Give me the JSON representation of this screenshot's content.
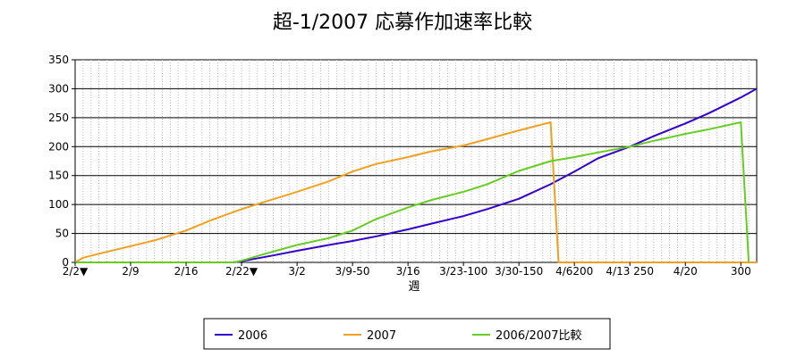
{
  "chart_data": {
    "type": "line",
    "title": "超-1/2007 応募作加速率比較",
    "xlabel": "週",
    "ylabel": "",
    "x_range": [
      0,
      86
    ],
    "ylim": [
      0,
      350
    ],
    "y_ticks": [
      0,
      50,
      100,
      150,
      200,
      250,
      300,
      350
    ],
    "x_ticks": [
      {
        "x": 0,
        "label": "2/2▼"
      },
      {
        "x": 7,
        "label": "2/9"
      },
      {
        "x": 14,
        "label": "2/16"
      },
      {
        "x": 21,
        "label": "2/22▼"
      },
      {
        "x": 28,
        "label": "3/2"
      },
      {
        "x": 35,
        "label": "3/9-50"
      },
      {
        "x": 42,
        "label": "3/16"
      },
      {
        "x": 49,
        "label": "3/23-100"
      },
      {
        "x": 56,
        "label": "3/30-150"
      },
      {
        "x": 63,
        "label": "4/6200"
      },
      {
        "x": 70,
        "label": "4/13 250"
      },
      {
        "x": 77,
        "label": "4/20"
      },
      {
        "x": 84,
        "label": "300"
      }
    ],
    "grid": true,
    "legend_position": "bottom",
    "series": [
      {
        "name": "2006",
        "color": "#3300cc",
        "points": [
          [
            0,
            0
          ],
          [
            20,
            0
          ],
          [
            21,
            2
          ],
          [
            25,
            12
          ],
          [
            28,
            20
          ],
          [
            32,
            30
          ],
          [
            35,
            37
          ],
          [
            38,
            45
          ],
          [
            42,
            57
          ],
          [
            45,
            67
          ],
          [
            49,
            80
          ],
          [
            52,
            92
          ],
          [
            56,
            110
          ],
          [
            60,
            135
          ],
          [
            63,
            157
          ],
          [
            66,
            180
          ],
          [
            70,
            200
          ],
          [
            73,
            218
          ],
          [
            77,
            240
          ],
          [
            80,
            258
          ],
          [
            84,
            285
          ],
          [
            86,
            300
          ]
        ]
      },
      {
        "name": "2007",
        "color": "#f0a020",
        "points": [
          [
            0,
            0
          ],
          [
            1,
            8
          ],
          [
            3,
            15
          ],
          [
            7,
            28
          ],
          [
            10,
            38
          ],
          [
            14,
            55
          ],
          [
            17,
            72
          ],
          [
            21,
            92
          ],
          [
            24,
            105
          ],
          [
            28,
            122
          ],
          [
            32,
            140
          ],
          [
            35,
            157
          ],
          [
            38,
            170
          ],
          [
            42,
            182
          ],
          [
            45,
            192
          ],
          [
            49,
            202
          ],
          [
            52,
            213
          ],
          [
            56,
            228
          ],
          [
            60,
            242
          ],
          [
            61,
            0
          ],
          [
            86,
            0
          ]
        ]
      },
      {
        "name": "2006/2007比較",
        "color": "#66cc22",
        "points": [
          [
            0,
            0
          ],
          [
            20,
            0
          ],
          [
            21,
            3
          ],
          [
            24,
            15
          ],
          [
            28,
            30
          ],
          [
            32,
            42
          ],
          [
            35,
            55
          ],
          [
            38,
            75
          ],
          [
            42,
            95
          ],
          [
            45,
            108
          ],
          [
            49,
            122
          ],
          [
            52,
            135
          ],
          [
            56,
            158
          ],
          [
            60,
            175
          ],
          [
            63,
            182
          ],
          [
            66,
            190
          ],
          [
            70,
            200
          ],
          [
            73,
            210
          ],
          [
            77,
            222
          ],
          [
            80,
            230
          ],
          [
            84,
            242
          ],
          [
            85,
            0
          ]
        ]
      }
    ]
  }
}
